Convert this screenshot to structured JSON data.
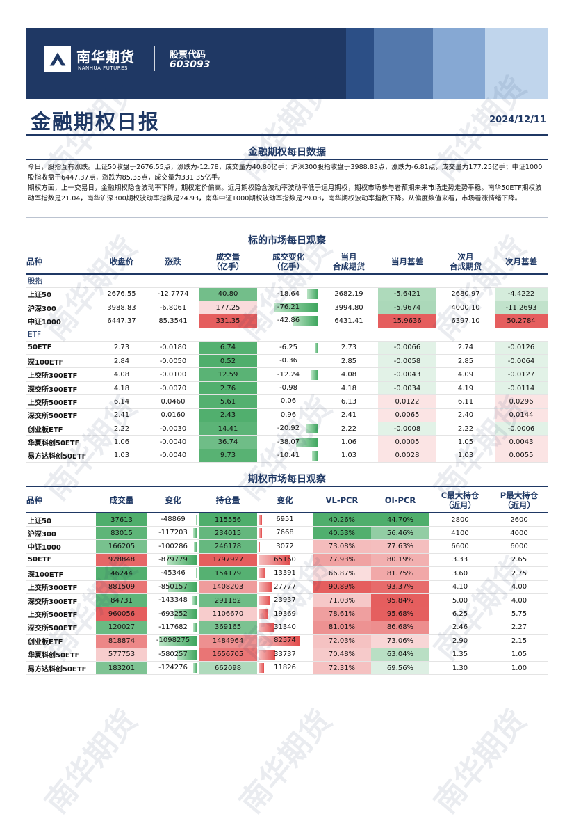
{
  "header": {
    "logo_cn": "南华期货",
    "logo_en": "NANHUA FUTURES",
    "stock_label": "股票代码",
    "stock_code": "603093"
  },
  "report": {
    "title": "金融期权日报",
    "date": "2024/12/11"
  },
  "section1": {
    "title": "金融期权每日数据",
    "paragraph1": "今日，股指互有涨跌。上证50收盘于2676.55点，涨跌为-12.78，成交量为40.80亿手；沪深300股指收盘于3988.83点，涨跌为-6.81点，成交量为177.25亿手；中证1000股指收盘于6447.37点，涨跌为85.35点，成交量为331.35亿手。",
    "paragraph2": "期权方面，上一交易日，金融期权隐含波动率下降，期权定价偏高。近月期权隐含波动率波动率低于远月期权，期权市场参与者预期未来市场走势走势平稳。南华50ETF期权波动率指数是21.04，南华沪深300期权波动率指数是24.93，南华中证1000期权波动率指数是29.03，南华期权波动率指数下降。从偏度数值来看，市场看涨情绪下降。"
  },
  "section2": {
    "title": "标的市场每日观察",
    "headers": [
      "品种",
      "收盘价",
      "涨跌",
      "成交量\n（亿手）",
      "成交变化\n（亿手）",
      "当月\n合成期货",
      "当月基差",
      "次月\n合成期货",
      "次月基差"
    ],
    "groups": [
      {
        "name": "股指",
        "rows": [
          [
            "上证50",
            "2676.55",
            "-12.7774",
            "40.80",
            "-18.64",
            "2682.19",
            "-5.6421",
            "2680.97",
            "-4.4222"
          ],
          [
            "沪深300",
            "3988.83",
            "-6.8061",
            "177.25",
            "-76.21",
            "3994.80",
            "-5.9674",
            "4000.10",
            "-11.2693"
          ],
          [
            "中证1000",
            "6447.37",
            "85.3541",
            "331.35",
            "-42.86",
            "6431.41",
            "15.9636",
            "6397.10",
            "50.2784"
          ]
        ]
      },
      {
        "name": "ETF",
        "rows": [
          [
            "50ETF",
            "2.73",
            "-0.0180",
            "6.74",
            "-6.25",
            "2.73",
            "-0.0066",
            "2.74",
            "-0.0126"
          ],
          [
            "深100ETF",
            "2.84",
            "-0.0050",
            "0.52",
            "-0.36",
            "2.85",
            "-0.0058",
            "2.85",
            "-0.0064"
          ],
          [
            "上交所300ETF",
            "4.08",
            "-0.0100",
            "12.59",
            "-12.24",
            "4.08",
            "-0.0043",
            "4.09",
            "-0.0127"
          ],
          [
            "深交所300ETF",
            "4.18",
            "-0.0070",
            "2.76",
            "-0.98",
            "4.18",
            "-0.0034",
            "4.19",
            "-0.0114"
          ],
          [
            "上交所500ETF",
            "6.14",
            "0.0460",
            "5.61",
            "0.06",
            "6.13",
            "0.0122",
            "6.11",
            "0.0296"
          ],
          [
            "深交所500ETF",
            "2.41",
            "0.0160",
            "2.43",
            "0.96",
            "2.41",
            "0.0065",
            "2.40",
            "0.0144"
          ],
          [
            "创业板ETF",
            "2.22",
            "-0.0030",
            "14.41",
            "-20.92",
            "2.22",
            "-0.0008",
            "2.22",
            "-0.0006"
          ],
          [
            "华夏科创50ETF",
            "1.06",
            "-0.0040",
            "36.74",
            "-38.07",
            "1.06",
            "0.0005",
            "1.05",
            "0.0043"
          ],
          [
            "易方达科创50ETF",
            "1.03",
            "-0.0040",
            "9.73",
            "-10.41",
            "1.03",
            "0.0028",
            "1.03",
            "0.0055"
          ]
        ]
      }
    ]
  },
  "section3": {
    "title": "期权市场每日观察",
    "headers": [
      "品种",
      "成交量",
      "变化",
      "持仓量",
      "变化",
      "VL-PCR",
      "OI-PCR",
      "C最大持仓\n（近月）",
      "P最大持仓\n（近月）"
    ],
    "rows": [
      [
        "上证50",
        "37613",
        "-48869",
        "115556",
        "6951",
        "40.26%",
        "44.70%",
        "2800",
        "2600"
      ],
      [
        "沪深300",
        "83015",
        "-117203",
        "234015",
        "7668",
        "40.53%",
        "56.46%",
        "4100",
        "4000"
      ],
      [
        "中证1000",
        "166205",
        "-100286",
        "246178",
        "3072",
        "73.08%",
        "77.63%",
        "6600",
        "6000"
      ],
      [
        "50ETF",
        "928848",
        "-879779",
        "1797927",
        "65160",
        "77.93%",
        "80.19%",
        "3.33",
        "2.65"
      ],
      [
        "深100ETF",
        "46244",
        "-45346",
        "154179",
        "13391",
        "66.87%",
        "81.75%",
        "3.60",
        "2.75"
      ],
      [
        "上交所300ETF",
        "881509",
        "-850157",
        "1408203",
        "27777",
        "90.89%",
        "93.37%",
        "4.10",
        "4.00"
      ],
      [
        "深交所300ETF",
        "84731",
        "-143348",
        "291182",
        "23937",
        "71.03%",
        "95.84%",
        "5.00",
        "4.00"
      ],
      [
        "上交所500ETF",
        "960056",
        "-693252",
        "1106670",
        "19369",
        "78.61%",
        "95.68%",
        "6.25",
        "5.75"
      ],
      [
        "深交所500ETF",
        "120027",
        "-117682",
        "369165",
        "31340",
        "81.01%",
        "86.68%",
        "2.46",
        "2.27"
      ],
      [
        "创业板ETF",
        "818874",
        "-1098275",
        "1484964",
        "82574",
        "72.03%",
        "73.06%",
        "2.90",
        "2.15"
      ],
      [
        "华夏科创50ETF",
        "577753",
        "-580257",
        "1656705",
        "33737",
        "70.48%",
        "63.04%",
        "1.35",
        "1.05"
      ],
      [
        "易方达科创50ETF",
        "183201",
        "-124276",
        "662098",
        "11826",
        "72.31%",
        "69.56%",
        "1.30",
        "1.00"
      ]
    ]
  },
  "watermark": "南华期货",
  "colors": {
    "navy": "#1f3864",
    "green": "#3ca55c",
    "red": "#e24c4c"
  }
}
